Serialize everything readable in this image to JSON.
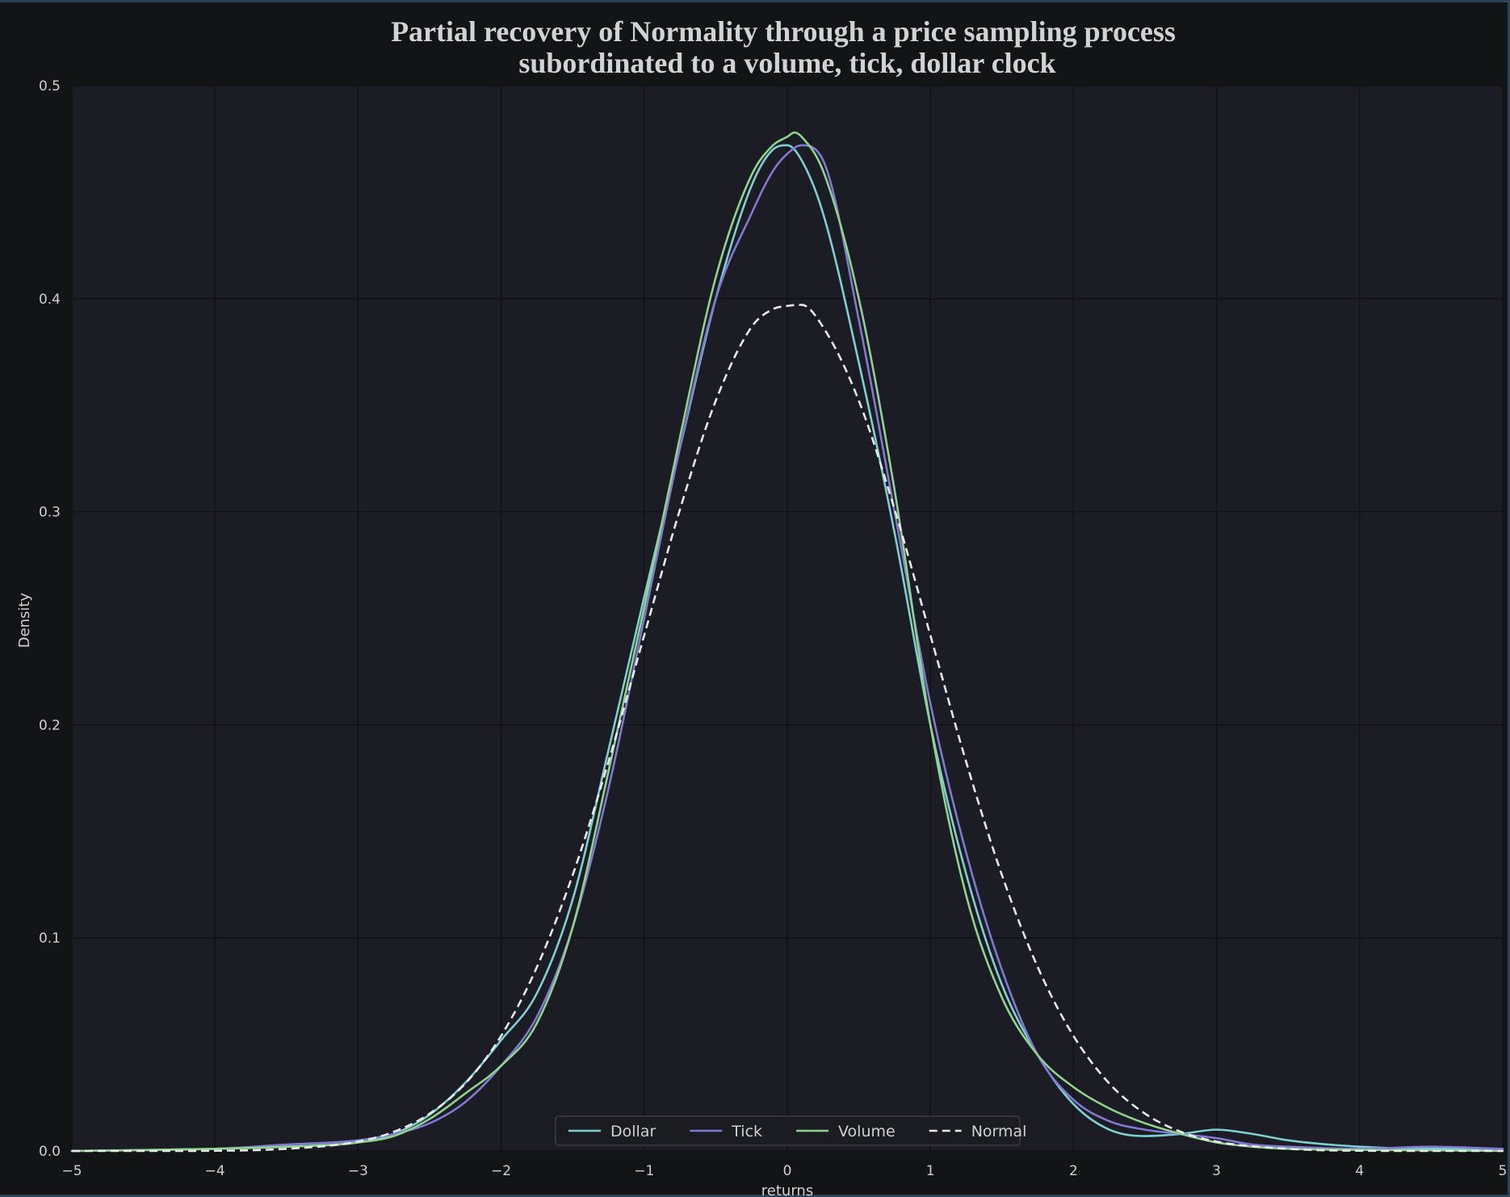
{
  "chart_data": {
    "type": "line",
    "title_lines": [
      "Partial recovery of Normality through a price sampling process",
      "subordinated to a volume, tick, dollar clock"
    ],
    "xlabel": "returns",
    "ylabel": "Density",
    "xlim": [
      -5,
      5
    ],
    "ylim": [
      0,
      0.5
    ],
    "x_ticks": [
      -5,
      -4,
      -3,
      -2,
      -1,
      0,
      1,
      2,
      3,
      4,
      5
    ],
    "x_tick_labels": [
      "−5",
      "−4",
      "−3",
      "−2",
      "−1",
      "0",
      "1",
      "2",
      "3",
      "4",
      "5"
    ],
    "y_ticks": [
      0,
      0.1,
      0.2,
      0.3,
      0.4,
      0.5
    ],
    "y_tick_labels": [
      "0.0",
      "0.1",
      "0.2",
      "0.3",
      "0.4",
      "0.5"
    ],
    "grid": true,
    "legend_position": "bottom-center",
    "background_color": "#1c1d24",
    "figure_color": "#131416",
    "series": [
      {
        "name": "Dollar",
        "color": "#7ecfd0",
        "dash": "solid",
        "x": [
          -5,
          -4,
          -3.5,
          -3,
          -2.75,
          -2.5,
          -2.25,
          -2,
          -1.75,
          -1.5,
          -1.25,
          -1,
          -0.75,
          -0.5,
          -0.25,
          -0.1,
          0,
          0.1,
          0.25,
          0.5,
          0.75,
          1,
          1.25,
          1.5,
          1.75,
          2,
          2.25,
          2.5,
          2.75,
          3,
          3.25,
          3.5,
          4,
          4.5,
          5
        ],
        "y": [
          0,
          0.001,
          0.002,
          0.004,
          0.008,
          0.017,
          0.032,
          0.052,
          0.074,
          0.118,
          0.188,
          0.26,
          0.33,
          0.4,
          0.453,
          0.47,
          0.472,
          0.465,
          0.44,
          0.37,
          0.29,
          0.2,
          0.13,
          0.078,
          0.045,
          0.022,
          0.01,
          0.007,
          0.008,
          0.01,
          0.008,
          0.005,
          0.002,
          0.001,
          0.001
        ]
      },
      {
        "name": "Tick",
        "color": "#8078d2",
        "dash": "solid",
        "x": [
          -5,
          -4,
          -3.5,
          -3,
          -2.75,
          -2.5,
          -2.25,
          -2,
          -1.75,
          -1.5,
          -1.25,
          -1,
          -0.75,
          -0.5,
          -0.25,
          -0.1,
          0,
          0.1,
          0.25,
          0.5,
          0.75,
          1,
          1.25,
          1.5,
          1.75,
          2,
          2.25,
          2.5,
          2.75,
          3,
          3.25,
          3.5,
          4,
          4.5,
          5
        ],
        "y": [
          0,
          0.001,
          0.003,
          0.005,
          0.008,
          0.013,
          0.023,
          0.04,
          0.063,
          0.105,
          0.17,
          0.25,
          0.33,
          0.4,
          0.44,
          0.46,
          0.468,
          0.472,
          0.465,
          0.39,
          0.3,
          0.21,
          0.14,
          0.085,
          0.045,
          0.024,
          0.014,
          0.01,
          0.008,
          0.006,
          0.003,
          0.002,
          0.001,
          0.002,
          0.001
        ]
      },
      {
        "name": "Volume",
        "color": "#8fd38e",
        "dash": "solid",
        "x": [
          -5,
          -4,
          -3.5,
          -3,
          -2.75,
          -2.5,
          -2.25,
          -2,
          -1.75,
          -1.5,
          -1.25,
          -1,
          -0.75,
          -0.5,
          -0.25,
          -0.1,
          0,
          0.05,
          0.1,
          0.25,
          0.5,
          0.75,
          1,
          1.25,
          1.5,
          1.75,
          2,
          2.25,
          2.5,
          2.75,
          3,
          3.25,
          3.5,
          4,
          4.5,
          5
        ],
        "y": [
          0,
          0.001,
          0.002,
          0.004,
          0.007,
          0.015,
          0.027,
          0.04,
          0.06,
          0.105,
          0.178,
          0.255,
          0.335,
          0.41,
          0.458,
          0.472,
          0.476,
          0.478,
          0.476,
          0.46,
          0.4,
          0.31,
          0.2,
          0.12,
          0.072,
          0.045,
          0.03,
          0.02,
          0.013,
          0.008,
          0.004,
          0.002,
          0.001,
          0.0005,
          0.0003,
          0
        ]
      },
      {
        "name": "Normal",
        "color": "#e8e8e8",
        "dash": "dashed",
        "x": [
          -5,
          -4.5,
          -4,
          -3.5,
          -3,
          -2.75,
          -2.5,
          -2.25,
          -2,
          -1.75,
          -1.5,
          -1.25,
          -1,
          -0.75,
          -0.5,
          -0.25,
          -0.1,
          0,
          0.1,
          0.25,
          0.5,
          0.75,
          1,
          1.25,
          1.5,
          1.75,
          2,
          2.25,
          2.5,
          2.75,
          3,
          3.5,
          4,
          4.5,
          5
        ],
        "y": [
          0,
          0,
          0.0001,
          0.001,
          0.0044,
          0.009,
          0.0175,
          0.0317,
          0.054,
          0.0863,
          0.1295,
          0.1826,
          0.242,
          0.3011,
          0.3521,
          0.3867,
          0.3951,
          0.3966,
          0.3971,
          0.3867,
          0.3521,
          0.3011,
          0.242,
          0.1826,
          0.1295,
          0.0863,
          0.054,
          0.0317,
          0.0175,
          0.009,
          0.0044,
          0.001,
          0.0001,
          0,
          0
        ]
      }
    ]
  }
}
